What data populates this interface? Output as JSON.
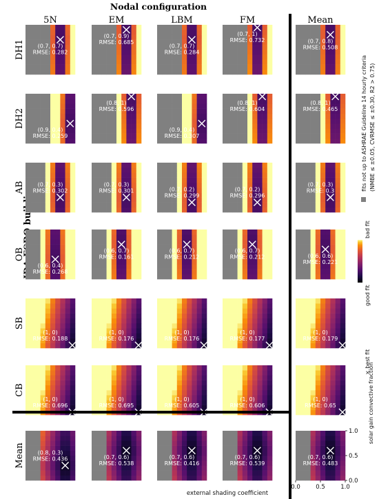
{
  "chart_data": {
    "type": "heatmap",
    "title": "Nodal configuration",
    "building_label": "IDA ESBO building",
    "columns": [
      "5N",
      "EM",
      "LBM",
      "FM",
      "Mean"
    ],
    "rows": [
      "DH1",
      "DH2",
      "AB",
      "OB",
      "SB",
      "CB",
      "Mean"
    ],
    "xlabel": "external shading coefficient",
    "ylabel": "solar gain convective fraction",
    "xlim": [
      0,
      1
    ],
    "ylim": [
      0,
      1
    ],
    "x_ticks": [
      "0.0",
      "0.5",
      "1.0"
    ],
    "y_ticks": [
      "0.0",
      "0.5",
      "1.0"
    ],
    "legend": {
      "gray_label": "fits not up to ASHRAE Guideline 14 hourly criteria",
      "gray_sublabel": "(NMBE ≤ ±0.05, CVRMSE ≤ ±0.30, R2 > 0.75)",
      "colorbar_top": "bad fit",
      "colorbar_bottom": "good fit",
      "marker_label": "× best fit"
    },
    "colors": {
      "not_acceptable": "#808080",
      "best_marker": "#ffffff",
      "divider": "#000000"
    },
    "best_fits": [
      [
        {
          "x": 0.7,
          "y": 0.7,
          "label": "(0.7, 0.7)",
          "rmse": "RMSE: 0.282"
        },
        {
          "x": 0.7,
          "y": 0.9,
          "label": "(0.7, 0.9)",
          "rmse": "RMSE: 0.685"
        },
        {
          "x": 0.7,
          "y": 0.7,
          "label": "(0.7, 0.7)",
          "rmse": "RMSE: 0.284"
        },
        {
          "x": 0.7,
          "y": 1.0,
          "label": "(0.7, 1)",
          "rmse": "RMSE: 0.732"
        },
        {
          "x": 0.7,
          "y": 0.8,
          "label": "(0.7, 0.8)",
          "rmse": "RMSE: 0.508"
        }
      ],
      [
        {
          "x": 0.9,
          "y": 0.4,
          "label": "(0.9, 0.4)",
          "rmse": "RMSE: 0.259"
        },
        {
          "x": 0.8,
          "y": 1.0,
          "label": "(0.8, 1)",
          "rmse": "RMSE: 0.596"
        },
        {
          "x": 0.9,
          "y": 0.4,
          "label": "(0.9, 0.4)",
          "rmse": "RMSE: 0.307"
        },
        {
          "x": 0.8,
          "y": 1.0,
          "label": "(0.8, 1)",
          "rmse": "RMSE: 0.604"
        },
        {
          "x": 0.8,
          "y": 1.0,
          "label": "(0.8, 1)",
          "rmse": "RMSE: 0.465"
        }
      ],
      [
        {
          "x": 0.7,
          "y": 0.3,
          "label": "(0.7, 0.3)",
          "rmse": "RMSE: 0.302"
        },
        {
          "x": 0.7,
          "y": 0.3,
          "label": "(0.7, 0.3)",
          "rmse": "RMSE: 0.301"
        },
        {
          "x": 0.7,
          "y": 0.2,
          "label": "(0.7, 0.2)",
          "rmse": "RMSE: 0.299"
        },
        {
          "x": 0.7,
          "y": 0.2,
          "label": "(0.7, 0.2)",
          "rmse": "RMSE: 0.296"
        },
        {
          "x": 0.7,
          "y": 0.3,
          "label": "(0.7, 0.3)",
          "rmse": "RMSE: 0.3"
        }
      ],
      [
        {
          "x": 0.6,
          "y": 0.4,
          "label": "(0.6, 0.4)",
          "rmse": "RMSE: 0.268"
        },
        {
          "x": 0.6,
          "y": 0.7,
          "label": "(0.6, 0.7)",
          "rmse": "RMSE: 0.161"
        },
        {
          "x": 0.6,
          "y": 0.7,
          "label": "(0.6, 0.7)",
          "rmse": "RMSE: 0.212"
        },
        {
          "x": 0.6,
          "y": 0.7,
          "label": "(0.6, 0.7)",
          "rmse": "RMSE: 0.212"
        },
        {
          "x": 0.6,
          "y": 0.6,
          "label": "(0.6, 0.6)",
          "rmse": "RMSE: 0.221"
        }
      ],
      [
        {
          "x": 1.0,
          "y": 0.0,
          "label": "(1, 0)",
          "rmse": "RMSE: 0.188"
        },
        {
          "x": 1.0,
          "y": 0.0,
          "label": "(1, 0)",
          "rmse": "RMSE: 0.176"
        },
        {
          "x": 1.0,
          "y": 0.0,
          "label": "(1, 0)",
          "rmse": "RMSE: 0.176"
        },
        {
          "x": 1.0,
          "y": 0.0,
          "label": "(1, 0)",
          "rmse": "RMSE: 0.177"
        },
        {
          "x": 1.0,
          "y": 0.0,
          "label": "(1, 0)",
          "rmse": "RMSE: 0.179"
        }
      ],
      [
        {
          "x": 1.0,
          "y": 0.0,
          "label": "(1, 0)",
          "rmse": "RMSE: 0.696"
        },
        {
          "x": 1.0,
          "y": 0.0,
          "label": "(1, 0)",
          "rmse": "RMSE: 0.695"
        },
        {
          "x": 1.0,
          "y": 0.0,
          "label": "(1, 0)",
          "rmse": "RMSE: 0.605"
        },
        {
          "x": 1.0,
          "y": 0.0,
          "label": "(1, 0)",
          "rmse": "RMSE: 0.606"
        },
        {
          "x": 1.0,
          "y": 0.0,
          "label": "(1, 0)",
          "rmse": "RMSE: 0.65"
        }
      ],
      [
        {
          "x": 0.8,
          "y": 0.3,
          "label": "(0.8, 0.3)",
          "rmse": "RMSE: 0.436"
        },
        {
          "x": 0.7,
          "y": 0.6,
          "label": "(0.7, 0.6)",
          "rmse": "RMSE: 0.538"
        },
        {
          "x": 0.7,
          "y": 0.6,
          "label": "(0.7, 0.6)",
          "rmse": "RMSE: 0.416"
        },
        {
          "x": 0.7,
          "y": 0.6,
          "label": "(0.7, 0.6)",
          "rmse": "RMSE: 0.539"
        },
        {
          "x": 0.7,
          "y": 0.6,
          "label": "(0.7, 0.6)",
          "rmse": "RMSE: 0.483"
        }
      ]
    ]
  }
}
